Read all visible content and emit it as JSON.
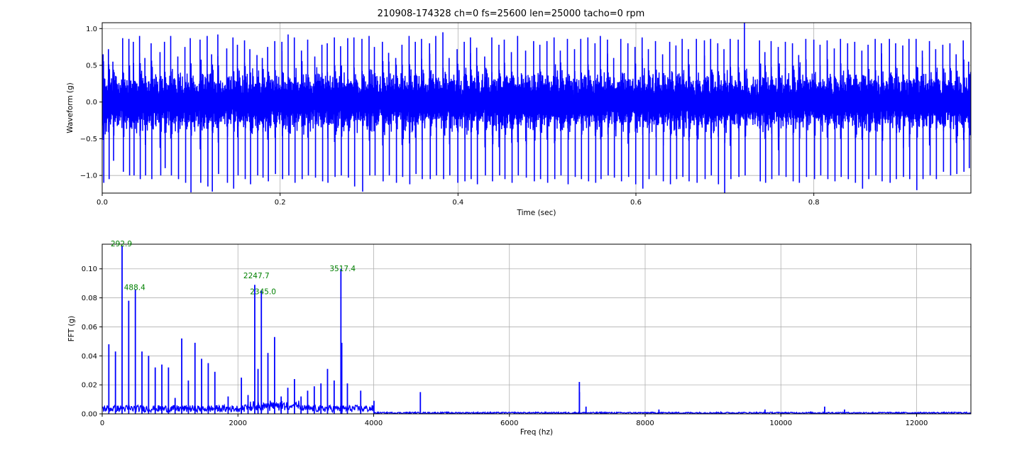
{
  "title": "210908-174328 ch=0 fs=25600 len=25000 tacho=0 rpm",
  "colors": {
    "series": "#0000ff",
    "annotation": "#008000",
    "grid": "#b0b0b0"
  },
  "chart_data": [
    {
      "type": "line",
      "xlabel": "Time (sec)",
      "ylabel": "Waveform (g)",
      "xlim": [
        0,
        0.9766
      ],
      "ylim": [
        -1.24,
        1.08
      ],
      "grid": true,
      "xticks": [
        0,
        0.2,
        0.4,
        0.6,
        0.8
      ],
      "xtick_labels": [
        "0.0",
        "0.2",
        "0.4",
        "0.6",
        "0.8"
      ],
      "yticks": [
        1.0,
        0.5,
        0.0,
        -0.5,
        -1.0
      ],
      "ytick_labels": [
        "1.0",
        "0.5",
        "0.0",
        "−0.5",
        "−1.0"
      ],
      "series": [
        {
          "sample_rate_hz": 25600,
          "length": 25000,
          "impulse_times": [
            0.001,
            0.007,
            0.012,
            0.023,
            0.03,
            0.035,
            0.042,
            0.048,
            0.055,
            0.065,
            0.07,
            0.077,
            0.085,
            0.093,
            0.099,
            0.11,
            0.118,
            0.123,
            0.13,
            0.14,
            0.147,
            0.152,
            0.16,
            0.166,
            0.174,
            0.18,
            0.186,
            0.194,
            0.202,
            0.209,
            0.216,
            0.224,
            0.231,
            0.239,
            0.247,
            0.253,
            0.261,
            0.268,
            0.276,
            0.283,
            0.292,
            0.3,
            0.306,
            0.315,
            0.322,
            0.33,
            0.337,
            0.345,
            0.352,
            0.359,
            0.368,
            0.375,
            0.383,
            0.39,
            0.399,
            0.407,
            0.414,
            0.421,
            0.43,
            0.438,
            0.446,
            0.452,
            0.46,
            0.467,
            0.476,
            0.485,
            0.492,
            0.5,
            0.508,
            0.515,
            0.523,
            0.531,
            0.538,
            0.546,
            0.554,
            0.56,
            0.568,
            0.575,
            0.583,
            0.591,
            0.599,
            0.607,
            0.614,
            0.622,
            0.63,
            0.638,
            0.645,
            0.652,
            0.659,
            0.668,
            0.677,
            0.684,
            0.692,
            0.699,
            0.706,
            0.715,
            0.722,
            0.739,
            0.745,
            0.752,
            0.76,
            0.768,
            0.776,
            0.783,
            0.791,
            0.8,
            0.807,
            0.815,
            0.823,
            0.83,
            0.838,
            0.846,
            0.854,
            0.861,
            0.869,
            0.876,
            0.885,
            0.892,
            0.9,
            0.907,
            0.915,
            0.922,
            0.93,
            0.937,
            0.945,
            0.953,
            0.96,
            0.968,
            0.974
          ],
          "impulse_peaks_pos": [
            0.65,
            0.72,
            0.55,
            0.87,
            0.86,
            0.82,
            0.9,
            0.6,
            0.8,
            0.68,
            0.82,
            0.9,
            0.62,
            0.75,
            0.87,
            0.85,
            0.9,
            0.65,
            0.92,
            0.73,
            0.88,
            0.78,
            0.84,
            0.72,
            0.64,
            0.6,
            0.75,
            0.83,
            0.82,
            0.92,
            0.88,
            0.7,
            0.85,
            0.62,
            0.78,
            0.8,
            0.88,
            0.76,
            0.87,
            0.88,
            0.86,
            0.9,
            0.75,
            0.82,
            0.67,
            0.6,
            0.78,
            0.9,
            0.82,
            0.86,
            0.8,
            0.9,
            0.95,
            0.6,
            0.72,
            0.82,
            0.88,
            0.74,
            0.62,
            0.88,
            0.78,
            0.85,
            0.68,
            0.9,
            0.7,
            0.83,
            0.78,
            0.83,
            0.88,
            0.7,
            0.86,
            0.72,
            0.86,
            0.88,
            0.8,
            0.9,
            0.85,
            0.6,
            0.86,
            0.8,
            0.75,
            0.88,
            0.72,
            0.83,
            0.65,
            0.82,
            0.77,
            0.86,
            0.72,
            0.86,
            0.84,
            0.86,
            0.8,
            0.72,
            0.86,
            0.85,
            1.08,
            0.84,
            0.68,
            0.83,
            0.75,
            0.82,
            0.8,
            0.64,
            0.86,
            0.85,
            0.78,
            0.84,
            0.73,
            0.86,
            0.8,
            0.82,
            0.7,
            0.78,
            0.86,
            0.8,
            0.86,
            0.8,
            0.77,
            0.86,
            0.86,
            0.7,
            0.83,
            0.72,
            0.78,
            0.8,
            0.65,
            0.84,
            0.55
          ],
          "impulse_peaks_neg": [
            -1.1,
            -1.05,
            -0.8,
            -0.95,
            -1.0,
            -1.0,
            -1.05,
            -1.0,
            -1.05,
            -1.0,
            -0.9,
            -1.0,
            -1.05,
            -1.1,
            -1.23,
            -1.1,
            -1.15,
            -1.22,
            -0.98,
            -1.1,
            -1.18,
            -1.0,
            -1.05,
            -1.12,
            -1.0,
            -1.03,
            -1.08,
            -0.98,
            -1.05,
            -1.0,
            -1.1,
            -1.05,
            -1.0,
            -1.03,
            -1.08,
            -1.1,
            -1.02,
            -1.0,
            -1.03,
            -1.15,
            -1.22,
            -1.0,
            -1.0,
            -1.08,
            -1.0,
            -1.1,
            -1.02,
            -1.12,
            -0.98,
            -1.05,
            -1.05,
            -1.0,
            -1.05,
            -1.0,
            -1.1,
            -1.08,
            -1.05,
            -1.12,
            -1.0,
            -1.08,
            -1.0,
            -1.05,
            -1.1,
            -1.0,
            -1.03,
            -1.08,
            -1.05,
            -1.1,
            -1.05,
            -1.0,
            -1.12,
            -1.02,
            -1.05,
            -1.08,
            -1.1,
            -1.05,
            -1.0,
            -1.03,
            -1.08,
            -1.02,
            -1.12,
            -1.18,
            -1.05,
            -1.0,
            -1.08,
            -1.12,
            -1.05,
            -1.02,
            -1.08,
            -1.1,
            -1.05,
            -1.0,
            -1.12,
            -1.24,
            -1.05,
            -1.02,
            -1.0,
            -1.08,
            -1.1,
            -1.05,
            -1.0,
            -1.02,
            -1.08,
            -1.1,
            -1.02,
            -1.05,
            -1.0,
            -1.05,
            -1.08,
            -1.02,
            -1.05,
            -1.1,
            -1.18,
            -1.05,
            -1.0,
            -1.08,
            -1.1,
            -1.05,
            -1.02,
            -1.05,
            -1.2,
            -1.05,
            -1.0,
            -1.05,
            -0.95,
            -1.0,
            -0.98,
            -0.95,
            -0.9,
            -1.0,
            -1.0
          ],
          "noise_envelope_pos": 0.45,
          "noise_envelope_neg": -0.45
        }
      ]
    },
    {
      "type": "line",
      "xlabel": "Freq (hz)",
      "ylabel": "FFT (g)",
      "xlim": [
        0,
        12800
      ],
      "ylim": [
        0,
        0.117
      ],
      "grid": true,
      "xticks": [
        0,
        2000,
        4000,
        6000,
        8000,
        10000,
        12000
      ],
      "xtick_labels": [
        "0",
        "2000",
        "4000",
        "6000",
        "8000",
        "10000",
        "12000"
      ],
      "yticks": [
        0.0,
        0.02,
        0.04,
        0.06,
        0.08,
        0.1
      ],
      "ytick_labels": [
        "0.00",
        "0.02",
        "0.04",
        "0.06",
        "0.08",
        "0.10"
      ],
      "series": [
        {
          "peaks": [
            {
              "f": 97.7,
              "a": 0.048
            },
            {
              "f": 195.3,
              "a": 0.043
            },
            {
              "f": 292.9,
              "a": 0.116
            },
            {
              "f": 390.6,
              "a": 0.078
            },
            {
              "f": 488.4,
              "a": 0.086
            },
            {
              "f": 586.0,
              "a": 0.043
            },
            {
              "f": 683.6,
              "a": 0.04
            },
            {
              "f": 781.3,
              "a": 0.032
            },
            {
              "f": 879.0,
              "a": 0.034
            },
            {
              "f": 976.6,
              "a": 0.032
            },
            {
              "f": 1074.2,
              "a": 0.011
            },
            {
              "f": 1171.9,
              "a": 0.052
            },
            {
              "f": 1269.5,
              "a": 0.023
            },
            {
              "f": 1367.2,
              "a": 0.049
            },
            {
              "f": 1464.8,
              "a": 0.038
            },
            {
              "f": 1562.5,
              "a": 0.035
            },
            {
              "f": 1660.2,
              "a": 0.029
            },
            {
              "f": 1855.4,
              "a": 0.012
            },
            {
              "f": 2051.0,
              "a": 0.025
            },
            {
              "f": 2149.0,
              "a": 0.013
            },
            {
              "f": 2247.7,
              "a": 0.089
            },
            {
              "f": 2296.0,
              "a": 0.031
            },
            {
              "f": 2345.0,
              "a": 0.085
            },
            {
              "f": 2442.0,
              "a": 0.042
            },
            {
              "f": 2540.0,
              "a": 0.053
            },
            {
              "f": 2637.0,
              "a": 0.012
            },
            {
              "f": 2735.0,
              "a": 0.018
            },
            {
              "f": 2833.0,
              "a": 0.024
            },
            {
              "f": 2930.0,
              "a": 0.012
            },
            {
              "f": 3027.0,
              "a": 0.016
            },
            {
              "f": 3125.0,
              "a": 0.019
            },
            {
              "f": 3223.0,
              "a": 0.021
            },
            {
              "f": 3320.0,
              "a": 0.031
            },
            {
              "f": 3418.0,
              "a": 0.023
            },
            {
              "f": 3517.4,
              "a": 0.1
            },
            {
              "f": 3530.0,
              "a": 0.049
            },
            {
              "f": 3613.0,
              "a": 0.021
            },
            {
              "f": 3809.0,
              "a": 0.016
            },
            {
              "f": 4004.0,
              "a": 0.009
            },
            {
              "f": 4688.0,
              "a": 0.015
            },
            {
              "f": 7031.0,
              "a": 0.022
            },
            {
              "f": 7031.5,
              "a": 0.015
            },
            {
              "f": 7129.0,
              "a": 0.005
            },
            {
              "f": 8203.0,
              "a": 0.003
            },
            {
              "f": 9766.0,
              "a": 0.003
            },
            {
              "f": 10645.0,
              "a": 0.005
            },
            {
              "f": 10938.0,
              "a": 0.003
            }
          ],
          "noise_floor_low": 0.004,
          "noise_floor_high": 0.001
        }
      ],
      "annotations": [
        {
          "text": "292.9",
          "x": 292.9,
          "y": 0.116
        },
        {
          "text": "488.4",
          "x": 488.4,
          "y": 0.086
        },
        {
          "text": "2247.7",
          "x": 2247.7,
          "y": 0.094
        },
        {
          "text": "2345.0",
          "x": 2345.0,
          "y": 0.083
        },
        {
          "text": "3517.4",
          "x": 3517.4,
          "y": 0.099
        }
      ]
    }
  ]
}
